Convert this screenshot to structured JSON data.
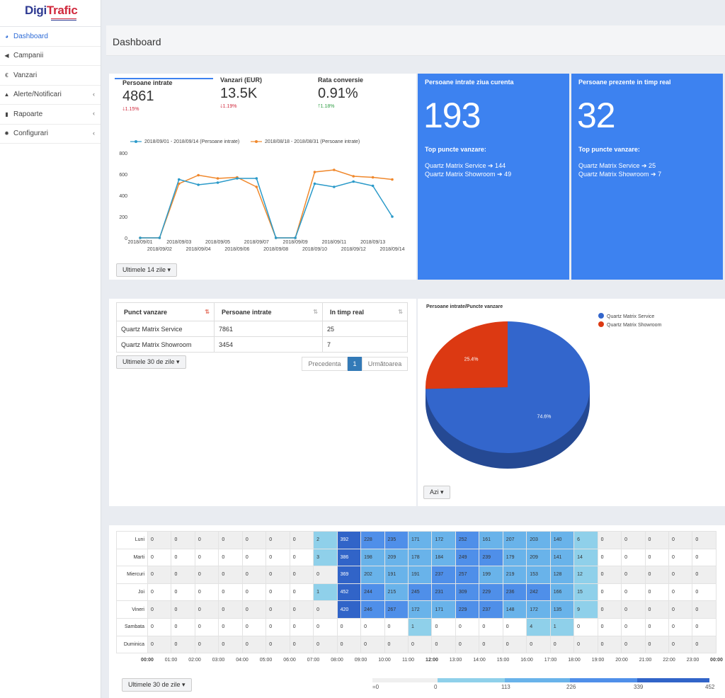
{
  "brand": {
    "name_a": "Digi",
    "name_b": "Trafic"
  },
  "sidebar": {
    "items": [
      {
        "label": "Dashboard",
        "icon": "dashboard-icon",
        "glyph": "◕",
        "chev": ""
      },
      {
        "label": "Campanii",
        "icon": "megaphone-icon",
        "glyph": "◀",
        "chev": ""
      },
      {
        "label": "Vanzari",
        "icon": "euro-icon",
        "glyph": "€",
        "chev": ""
      },
      {
        "label": "Alerte/Notificari",
        "icon": "bell-icon",
        "glyph": "▲",
        "chev": "‹"
      },
      {
        "label": "Rapoarte",
        "icon": "bar-chart-icon",
        "glyph": "▮",
        "chev": "‹"
      },
      {
        "label": "Configurari",
        "icon": "gear-icon",
        "glyph": "✹",
        "chev": "‹"
      }
    ]
  },
  "page": {
    "title": "Dashboard"
  },
  "kpis": [
    {
      "label": "Persoane intrate",
      "value": "4861",
      "delta": "1.15%",
      "dir": "down"
    },
    {
      "label": "Vanzari (EUR)",
      "value": "13.5K",
      "delta": "1.19%",
      "dir": "down"
    },
    {
      "label": "Rata conversie",
      "value": "0.91%",
      "delta": "1.18%",
      "dir": "up"
    }
  ],
  "chart_data": {
    "type": "line",
    "x": [
      "2018/09/01",
      "2018/09/02",
      "2018/09/03",
      "2018/09/04",
      "2018/09/05",
      "2018/09/06",
      "2018/09/07",
      "2018/09/08",
      "2018/09/09",
      "2018/09/10",
      "2018/09/11",
      "2018/09/12",
      "2018/09/13",
      "2018/09/14"
    ],
    "ylim": [
      0,
      800
    ],
    "yticks": [
      "0",
      "200",
      "400",
      "600",
      "800"
    ],
    "series": [
      {
        "name": "2018/09/01 - 2018/09/14 (Persoane intrate)",
        "color": "#2b9ac9",
        "values": [
          0,
          0,
          550,
          500,
          520,
          560,
          560,
          0,
          0,
          510,
          480,
          530,
          490,
          200
        ]
      },
      {
        "name": "2018/08/18 - 2018/08/31 (Persoane intrate)",
        "color": "#f0882c",
        "values": [
          0,
          0,
          510,
          590,
          560,
          570,
          480,
          0,
          0,
          620,
          640,
          580,
          570,
          550
        ]
      }
    ]
  },
  "chart_filter": "Ultimele 14 zile ▾",
  "cards": [
    {
      "title": "Persoane intrate ziua curenta",
      "value": "193",
      "top_label": "Top puncte vanzare:",
      "lines": [
        "Quartz Matrix Service ➔ 144",
        "Quartz Matrix Showroom ➔ 49"
      ]
    },
    {
      "title": "Persoane prezente in timp real",
      "value": "32",
      "top_label": "Top puncte vanzare:",
      "lines": [
        "Quartz Matrix Service ➔ 25",
        "Quartz Matrix Showroom ➔ 7"
      ]
    }
  ],
  "table": {
    "headers": [
      "Punct vanzare",
      "Persoane intrate",
      "In timp real"
    ],
    "rows": [
      [
        "Quartz Matrix Service",
        "7861",
        "25"
      ],
      [
        "Quartz Matrix Showroom",
        "3454",
        "7"
      ]
    ],
    "filter": "Ultimele 30 de zile ▾",
    "prev": "Precedenta",
    "page": "1",
    "next": "Următoarea"
  },
  "pie": {
    "title": "Persoane intrate/Puncte vanzare",
    "slices": [
      {
        "name": "Quartz Matrix Service",
        "value": 74.6,
        "label": "74.6%",
        "color": "#3366cc"
      },
      {
        "name": "Quartz Matrix Showroom",
        "value": 25.4,
        "label": "25.4%",
        "color": "#dc3912"
      }
    ],
    "filter": "Azi ▾"
  },
  "heatmap": {
    "days": [
      "Luni",
      "Marti",
      "Miercuri",
      "Joi",
      "Vineri",
      "Sambata",
      "Duminica"
    ],
    "hours": [
      "00:00",
      "01:00",
      "02:00",
      "03:00",
      "04:00",
      "05:00",
      "06:00",
      "07:00",
      "08:00",
      "09:00",
      "10:00",
      "11:00",
      "12:00",
      "13:00",
      "14:00",
      "15:00",
      "16:00",
      "17:00",
      "18:00",
      "19:00",
      "20:00",
      "21:00",
      "22:00",
      "23:00",
      "00:00"
    ],
    "values": [
      [
        0,
        0,
        0,
        0,
        0,
        0,
        0,
        2,
        392,
        228,
        235,
        171,
        172,
        252,
        161,
        207,
        203,
        140,
        6,
        0,
        0,
        0,
        0,
        0
      ],
      [
        0,
        0,
        0,
        0,
        0,
        0,
        0,
        3,
        386,
        198,
        209,
        178,
        184,
        249,
        239,
        179,
        209,
        141,
        14,
        0,
        0,
        0,
        0,
        0
      ],
      [
        0,
        0,
        0,
        0,
        0,
        0,
        0,
        0,
        369,
        202,
        191,
        191,
        237,
        257,
        199,
        219,
        153,
        128,
        12,
        0,
        0,
        0,
        0,
        0
      ],
      [
        0,
        0,
        0,
        0,
        0,
        0,
        0,
        1,
        452,
        244,
        215,
        245,
        231,
        309,
        229,
        236,
        242,
        166,
        15,
        0,
        0,
        0,
        0,
        0
      ],
      [
        0,
        0,
        0,
        0,
        0,
        0,
        0,
        0,
        420,
        246,
        267,
        172,
        171,
        229,
        237,
        148,
        172,
        135,
        9,
        0,
        0,
        0,
        0,
        0
      ],
      [
        0,
        0,
        0,
        0,
        0,
        0,
        0,
        0,
        0,
        0,
        0,
        1,
        0,
        0,
        0,
        0,
        4,
        1,
        0,
        0,
        0,
        0,
        0,
        0
      ],
      [
        0,
        0,
        0,
        0,
        0,
        0,
        0,
        0,
        0,
        0,
        0,
        0,
        0,
        0,
        0,
        0,
        0,
        0,
        0,
        0,
        0,
        0,
        0,
        0
      ]
    ],
    "filter": "Ultimele 30 de zile ▾",
    "legend": [
      "=0",
      "0",
      "113",
      "226",
      "339",
      "452"
    ],
    "colors": [
      "#efefef",
      "#8fd0ea",
      "#69b3ea",
      "#4f8fe9",
      "#3164c8"
    ]
  }
}
